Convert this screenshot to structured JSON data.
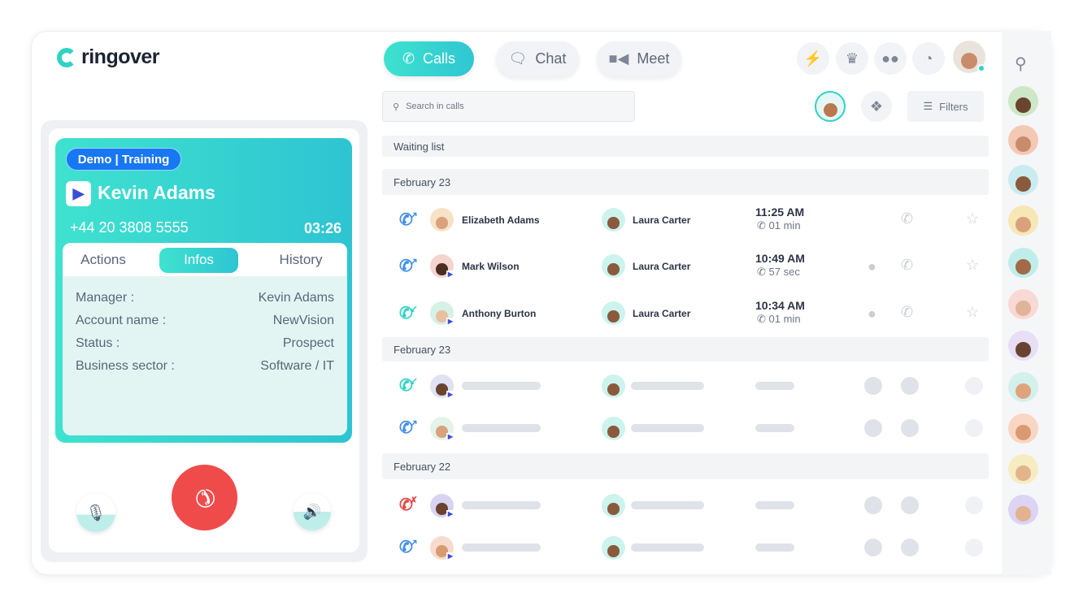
{
  "app": {
    "logo_text": "ringover"
  },
  "header": {
    "tabs": [
      {
        "label": "Calls",
        "icon": "phone-icon",
        "active": true
      },
      {
        "label": "Chat",
        "icon": "chat-icon"
      },
      {
        "label": "Meet",
        "icon": "video-icon"
      }
    ],
    "icons": [
      "lightning-icon",
      "crown-icon",
      "team-icon",
      "pie-chart-icon"
    ]
  },
  "toolbar": {
    "search_placeholder": "Search in calls",
    "filters_label": "Filters"
  },
  "call": {
    "tag": "Demo | Training",
    "name": "Kevin Adams",
    "number": "+44 20 3808 5555",
    "timer": "03:26",
    "tabs": [
      "Actions",
      "Infos",
      "History"
    ],
    "active_tab": "Infos",
    "info": [
      {
        "label": "Manager :",
        "value": "Kevin Adams"
      },
      {
        "label": "Account name :",
        "value": "NewVision"
      },
      {
        "label": "Status :",
        "value": "Prospect"
      },
      {
        "label": "Business sector :",
        "value": "Software / IT"
      }
    ]
  },
  "list": {
    "waiting": "Waiting list",
    "groups": [
      {
        "date": "February 23",
        "rows": [
          {
            "dir": "outgoing",
            "contact": "Elizabeth Adams",
            "agent": "Laura Carter",
            "time": "11:25 AM",
            "duration": "01 min",
            "chat": false
          },
          {
            "dir": "outgoing",
            "contact": "Mark Wilson",
            "agent": "Laura Carter",
            "time": "10:49 AM",
            "duration": "57 sec",
            "chat": true
          },
          {
            "dir": "incoming",
            "contact": "Anthony Burton",
            "agent": "Laura Carter",
            "time": "10:34 AM",
            "duration": "01 min",
            "chat": true
          }
        ]
      },
      {
        "date": "February 23"
      },
      {
        "date": "February 22"
      }
    ]
  },
  "colors": {
    "accent": "#2ed3c6",
    "hangup": "#f04b4b",
    "outgoing": "#3f8fe8",
    "missed": "#e84545",
    "tag": "#1877f2"
  }
}
